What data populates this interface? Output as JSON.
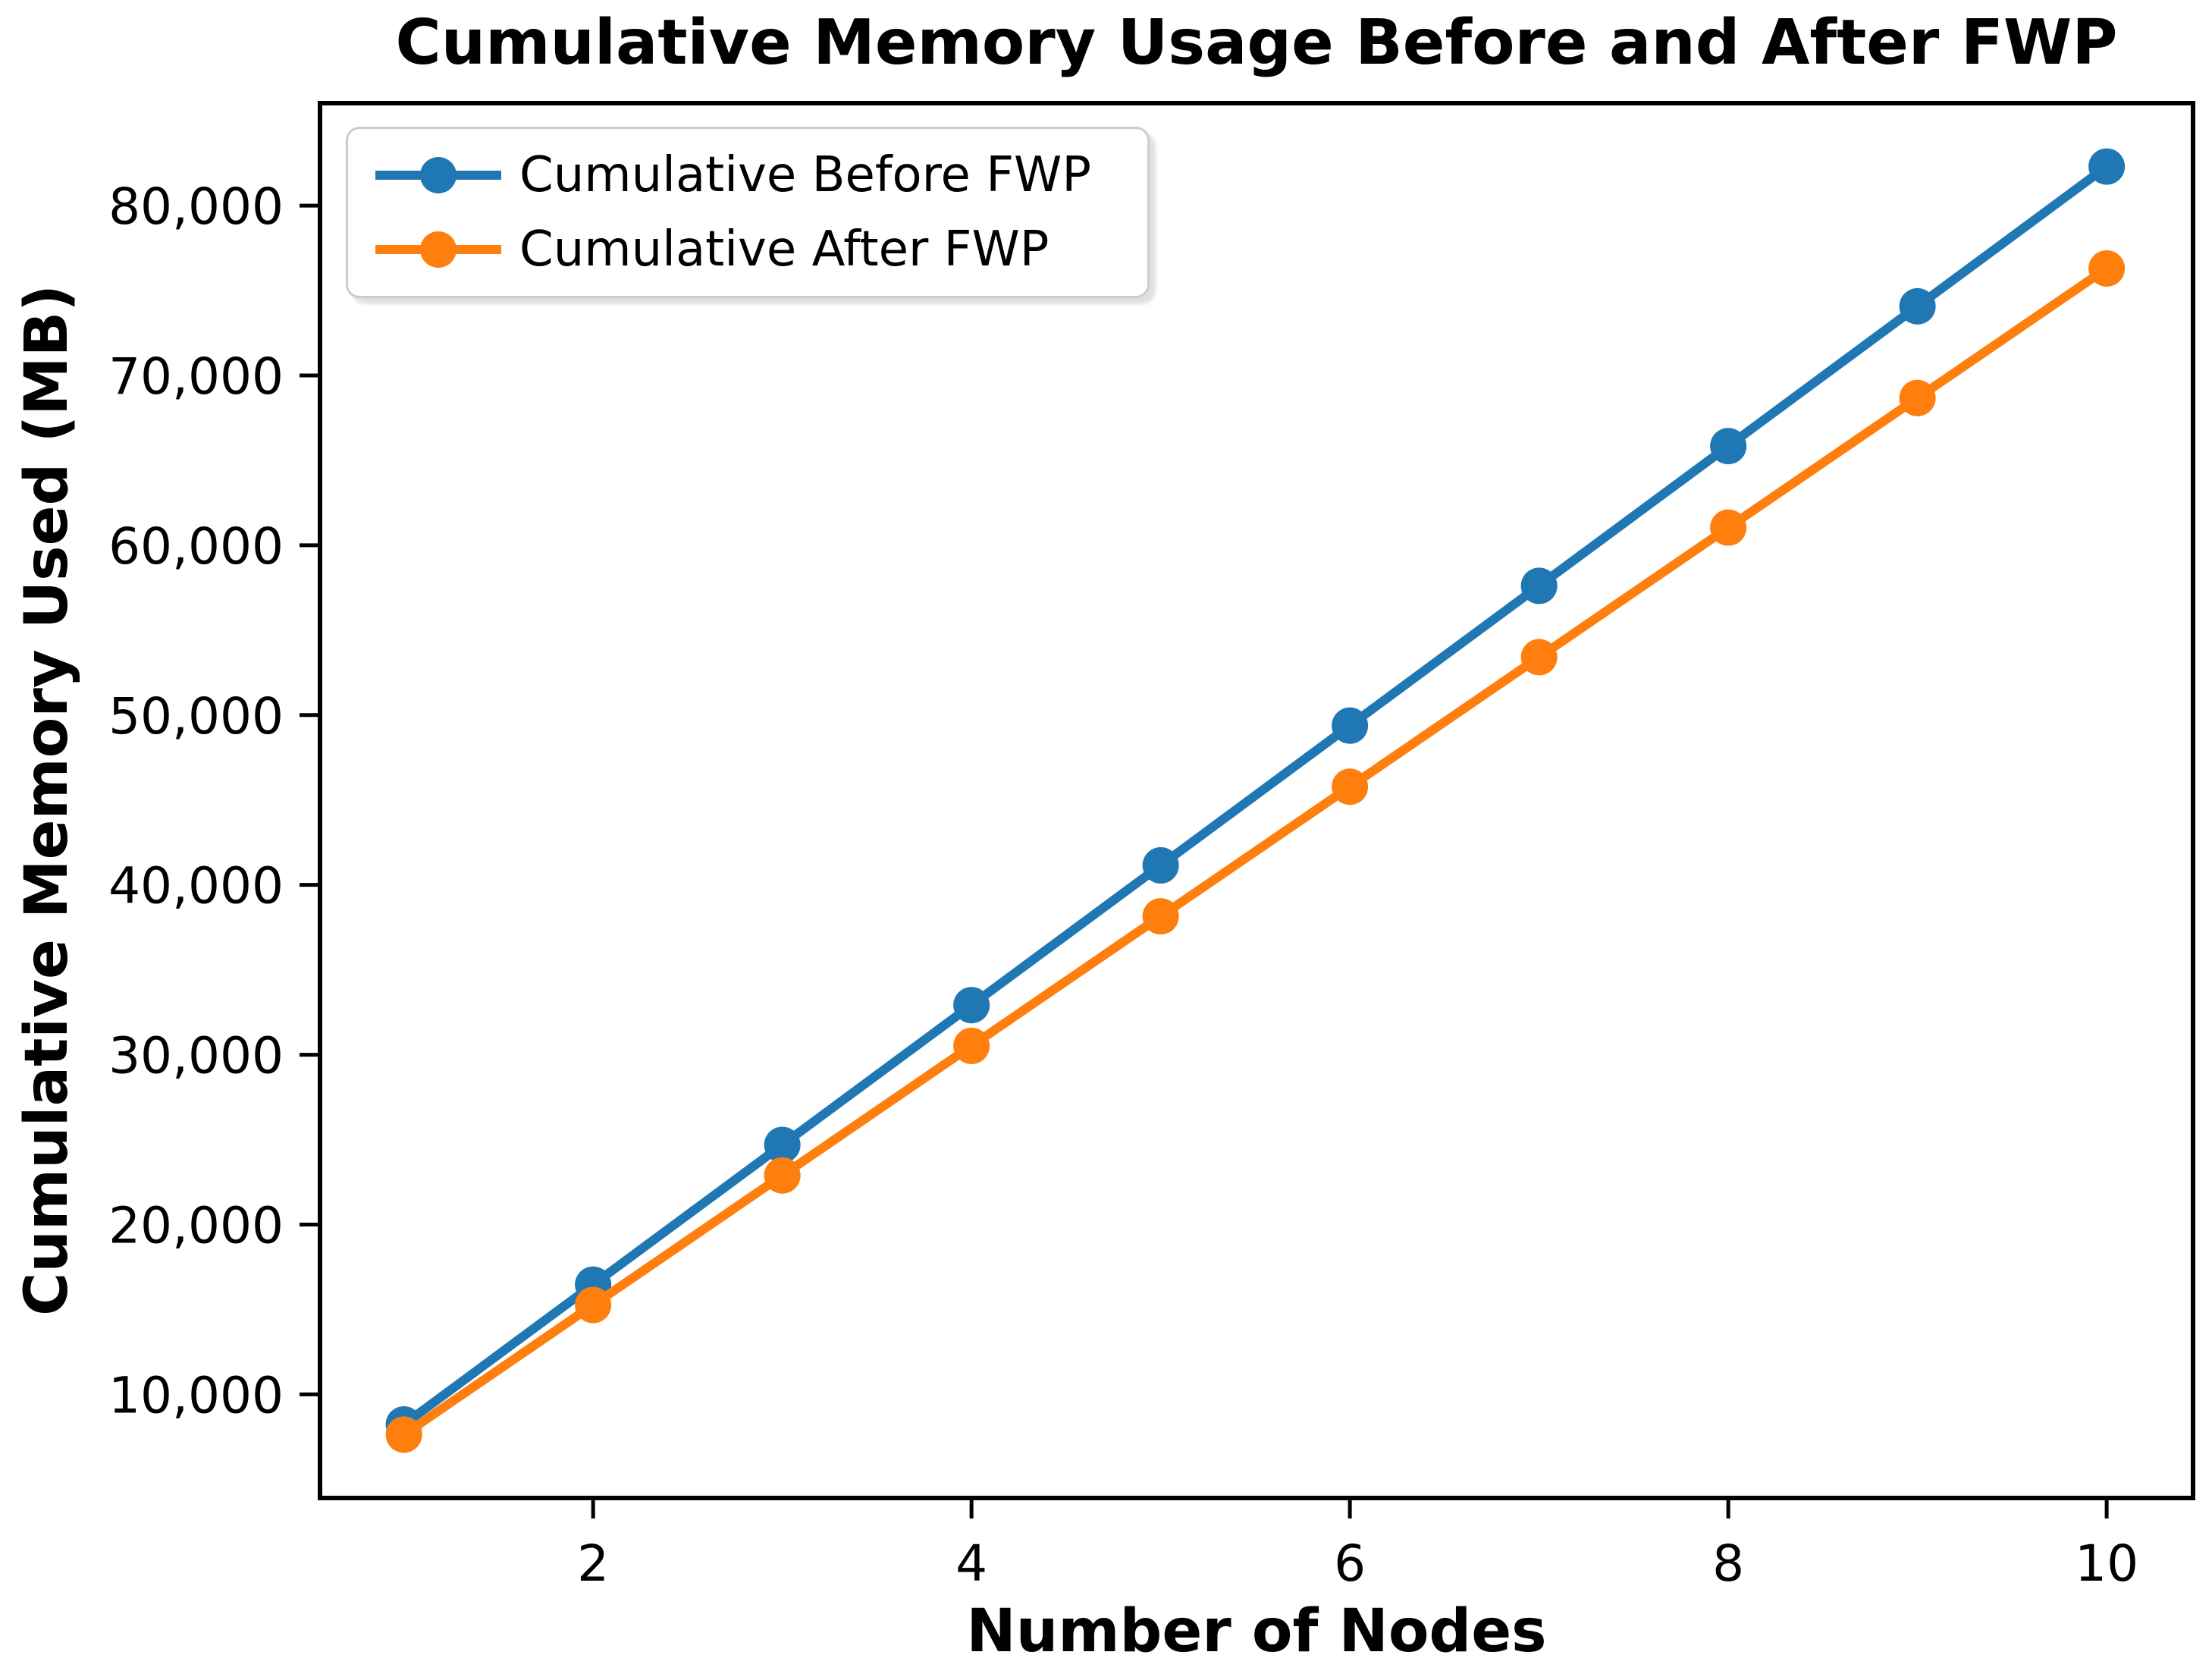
{
  "chart_data": {
    "type": "line",
    "title": "Cumulative Memory Usage Before and After FWP",
    "xlabel": "Number of Nodes",
    "ylabel": "Cumulative Memory Used (MB)",
    "x": [
      1,
      2,
      3,
      4,
      5,
      6,
      7,
      8,
      9,
      10
    ],
    "series": [
      {
        "name": "Cumulative Before FWP",
        "color": "#1f77b4",
        "values": [
          8230,
          16460,
          24690,
          32920,
          41150,
          49380,
          57610,
          65840,
          74070,
          82300
        ]
      },
      {
        "name": "Cumulative After FWP",
        "color": "#ff7f0e",
        "values": [
          7630,
          15260,
          22890,
          30520,
          38150,
          45780,
          53410,
          61040,
          68670,
          76300
        ]
      }
    ],
    "xlim": [
      0.5565,
      10.4565
    ],
    "ylim": [
      3897,
      86034
    ],
    "xticks": [
      {
        "value": 2,
        "label": "2"
      },
      {
        "value": 4,
        "label": "4"
      },
      {
        "value": 6,
        "label": "6"
      },
      {
        "value": 8,
        "label": "8"
      },
      {
        "value": 10,
        "label": "10"
      }
    ],
    "yticks": [
      {
        "value": 10000,
        "label": "10,000"
      },
      {
        "value": 20000,
        "label": "20,000"
      },
      {
        "value": 30000,
        "label": "30,000"
      },
      {
        "value": 40000,
        "label": "40,000"
      },
      {
        "value": 50000,
        "label": "50,000"
      },
      {
        "value": 60000,
        "label": "60,000"
      },
      {
        "value": 70000,
        "label": "70,000"
      },
      {
        "value": 80000,
        "label": "80,000"
      }
    ],
    "legend": {
      "position": "upper-left",
      "frame": true
    },
    "grid": false,
    "marker": "o",
    "axis_color": "#000000"
  }
}
